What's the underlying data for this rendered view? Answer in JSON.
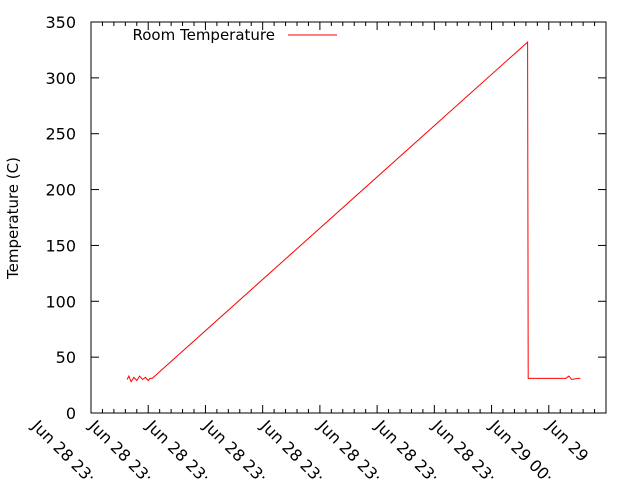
{
  "chart_data": {
    "type": "line",
    "title": "",
    "xlabel": "",
    "ylabel": "Temperature (C)",
    "ylim": [
      0,
      350
    ],
    "yticks": [
      0,
      50,
      100,
      150,
      200,
      250,
      300,
      350
    ],
    "xticks": [
      "Jun 28 23:",
      "Jun 28 23:",
      "Jun 28 23:",
      "Jun 28 23:",
      "Jun 28 23:",
      "Jun 28 23:",
      "Jun 28 23:",
      "Jun 28 23:",
      "Jun 29 00:",
      "Jun 29"
    ],
    "xtick_positions": [
      0,
      1,
      2,
      3,
      4,
      5,
      6,
      7,
      8,
      9
    ],
    "xlim": [
      0,
      9
    ],
    "legend_position": "top-left",
    "grid": false,
    "series": [
      {
        "name": "Room Temperature",
        "color": "#ff0000",
        "x": [
          0.63,
          0.66,
          0.7,
          0.75,
          0.8,
          0.85,
          0.9,
          0.95,
          1.0,
          1.03,
          1.07,
          7.63,
          7.64,
          7.7,
          7.9,
          8.1,
          8.3,
          8.35,
          8.4,
          8.5,
          8.55
        ],
        "y": [
          30,
          33,
          28,
          32,
          29,
          33,
          30,
          32,
          29,
          31,
          31,
          332,
          31,
          31,
          31,
          31,
          31,
          33,
          30,
          31,
          31
        ]
      }
    ]
  }
}
